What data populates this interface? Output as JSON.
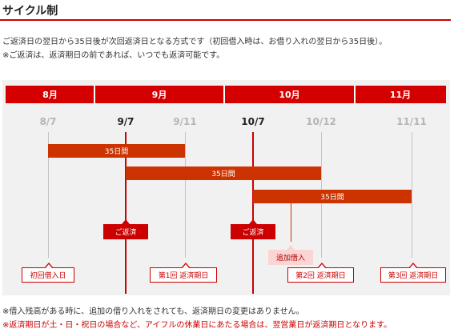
{
  "title": "サイクル制",
  "intro": [
    "ご返済日の翌日から35日後が次回返済日となる方式です（初回借入時は、お借り入れの翌日から35日後）。",
    "※ご返済は、返済期日の前であれば、いつでも返済可能です。"
  ],
  "months": [
    "8月",
    "9月",
    "10月",
    "11月"
  ],
  "dates": [
    "8/7",
    "9/7",
    "9/11",
    "10/7",
    "10/12",
    "11/11"
  ],
  "periods": [
    "35日間",
    "35日間",
    "35日間"
  ],
  "repayments": [
    "ご返済",
    "ご返済"
  ],
  "additional_borrowing": "追加借入",
  "milestones": [
    "初回借入日",
    "第1回 返済期日",
    "第2回 返済期日",
    "第3回 返済期日"
  ],
  "footnotes": [
    "※借入残高がある時に、追加の借り入れをされても、返済期日の変更はありません。",
    "※返済期日が土・日・祝日の場合など、アイフルの休業日にあたる場合は、翌営業日が返済期日となります。"
  ],
  "colors": {
    "accent": "#cc0000",
    "bar": "#cc3300",
    "tag": "#fbd4d4",
    "panel": "#f1f1f1"
  }
}
